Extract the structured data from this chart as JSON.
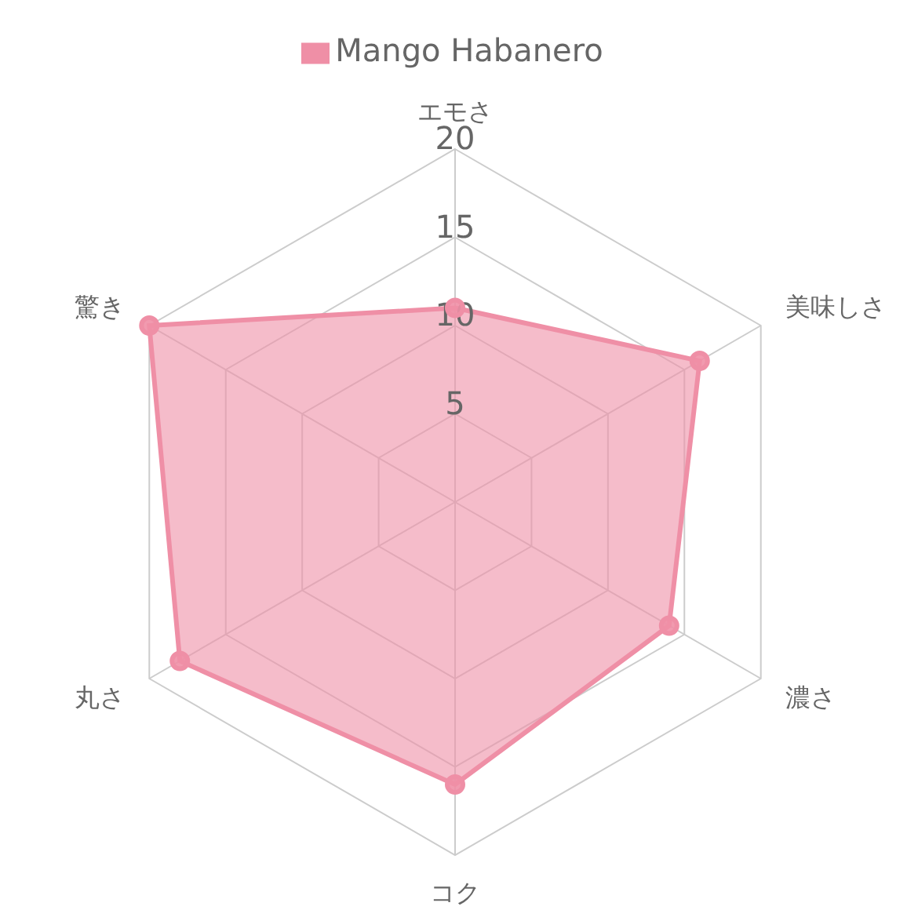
{
  "chart_data": {
    "type": "radar",
    "categories": [
      "エモさ",
      "美味しさ",
      "濃さ",
      "コク",
      "丸さ",
      "驚き"
    ],
    "series": [
      {
        "name": "Mango Habanero",
        "color": "#ef8fa6",
        "values": [
          11,
          16,
          14,
          16,
          18,
          20
        ]
      }
    ],
    "ylim": [
      0,
      20
    ],
    "yticks": [
      5,
      10,
      15,
      20
    ],
    "grid": true,
    "legend": "top",
    "marker": "circle"
  }
}
